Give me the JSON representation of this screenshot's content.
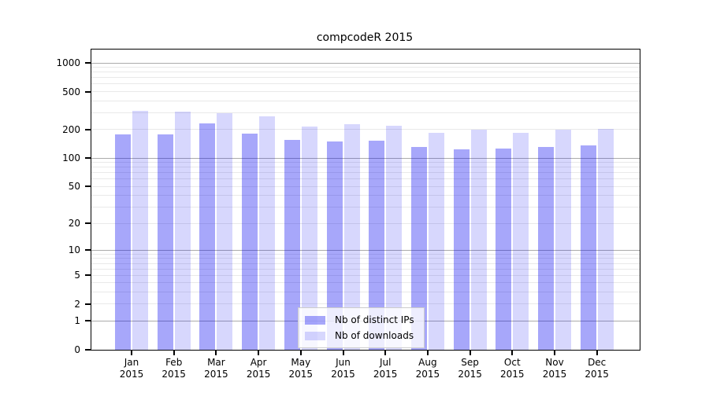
{
  "figure": {
    "title": "compcodeR 2015"
  },
  "y_axis": {
    "ticks": [
      {
        "label": "0",
        "value": 0
      },
      {
        "label": "1",
        "value": 1
      },
      {
        "label": "2",
        "value": 2
      },
      {
        "label": "5",
        "value": 5
      },
      {
        "label": "10",
        "value": 10
      },
      {
        "label": "20",
        "value": 20
      },
      {
        "label": "50",
        "value": 50
      },
      {
        "label": "100",
        "value": 100
      },
      {
        "label": "200",
        "value": 200
      },
      {
        "label": "500",
        "value": 500
      },
      {
        "label": "1000",
        "value": 1000
      }
    ]
  },
  "x_axis": {
    "months": [
      "Jan",
      "Feb",
      "Mar",
      "Apr",
      "May",
      "Jun",
      "Jul",
      "Aug",
      "Sep",
      "Oct",
      "Nov",
      "Dec"
    ],
    "year": "2015"
  },
  "legend": {
    "items": [
      {
        "label": "Nb of distinct IPs",
        "color": "rgba(2,2,240,0.35)"
      },
      {
        "label": "Nb of downloads",
        "color": "rgba(2,2,240,0.155)"
      }
    ]
  },
  "colors": {
    "bar_distinct_ips": "#a8aaf5",
    "bar_downloads": "#d8daf9",
    "grid_major": "#ababab",
    "grid_minor": "#e9e9e9",
    "spine": "#000000"
  },
  "chart_data": {
    "type": "bar",
    "title": "compcodeR 2015",
    "categories": [
      "Jan 2015",
      "Feb 2015",
      "Mar 2015",
      "Apr 2015",
      "May 2015",
      "Jun 2015",
      "Jul 2015",
      "Aug 2015",
      "Sep 2015",
      "Oct 2015",
      "Nov 2015",
      "Dec 2015"
    ],
    "series": [
      {
        "name": "Nb of distinct IPs",
        "color": "rgba(2,2,240,0.35)",
        "values": [
          178,
          178,
          232,
          182,
          157,
          150,
          153,
          131,
          123,
          126,
          132,
          135
        ]
      },
      {
        "name": "Nb of downloads",
        "color": "rgba(2,2,240,0.155)",
        "values": [
          316,
          309,
          296,
          276,
          215,
          227,
          220,
          186,
          198,
          186,
          200,
          205
        ]
      }
    ],
    "xlabel": "",
    "ylabel": "",
    "yscale": "log1p",
    "yticks": [
      0,
      1,
      2,
      5,
      10,
      20,
      50,
      100,
      200,
      500,
      1000
    ],
    "ylim": [
      0,
      1380
    ],
    "grid": "on",
    "gridline_values_minor": [
      2,
      3,
      4,
      5,
      6,
      7,
      8,
      9,
      20,
      30,
      40,
      50,
      60,
      70,
      80,
      90,
      200,
      300,
      400,
      500,
      600,
      700,
      800,
      900
    ],
    "gridline_values_major": [
      1,
      10,
      100,
      1000
    ],
    "legend_position": "lower center"
  }
}
